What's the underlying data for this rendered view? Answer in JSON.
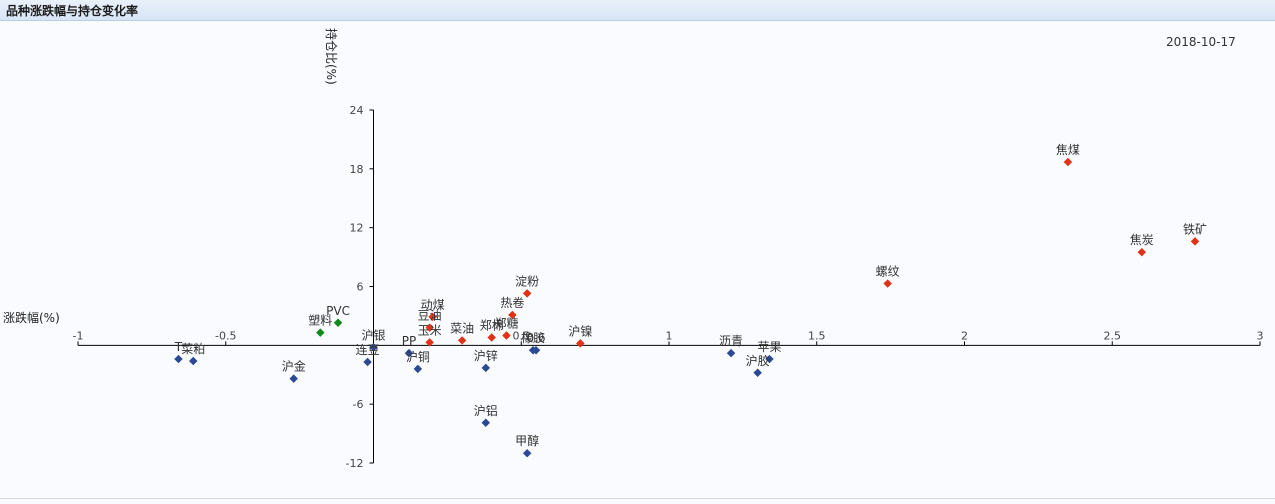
{
  "header": {
    "title": "品种涨跌幅与持仓变化率"
  },
  "date": "2018-10-17",
  "chart_data": {
    "type": "scatter",
    "title": "品种涨跌幅与持仓变化率",
    "xlabel": "涨跌幅(%)",
    "ylabel": "持仓比(%)",
    "xlim": [
      -1,
      3
    ],
    "ylim": [
      -12,
      24
    ],
    "x_ticks": [
      -1,
      -0.5,
      0,
      0.5,
      1,
      1.5,
      2,
      2.5,
      3
    ],
    "x_tick_labels": [
      "-1",
      "-0.5",
      "",
      "0.5",
      "1",
      "1.5",
      "2",
      "2.5",
      "3"
    ],
    "y_ticks": [
      -12,
      -6,
      0,
      6,
      12,
      18,
      24
    ],
    "y_tick_labels": [
      "-12",
      "-6",
      "",
      "6",
      "12",
      "18",
      "24"
    ],
    "grid": false,
    "colors": {
      "up": "#e03216",
      "down": "#2b4a94",
      "green": "#0f8a1c"
    },
    "points": [
      {
        "name": "焦煤",
        "x": 2.35,
        "y": 18.7,
        "color": "up"
      },
      {
        "name": "铁矿",
        "x": 2.78,
        "y": 10.6,
        "color": "up"
      },
      {
        "name": "焦炭",
        "x": 2.6,
        "y": 9.5,
        "color": "up"
      },
      {
        "name": "螺纹",
        "x": 1.74,
        "y": 6.3,
        "color": "up"
      },
      {
        "name": "淀粉",
        "x": 0.52,
        "y": 5.3,
        "color": "up"
      },
      {
        "name": "热卷",
        "x": 0.47,
        "y": 3.1,
        "color": "up"
      },
      {
        "name": "动煤",
        "x": 0.2,
        "y": 2.9,
        "color": "up"
      },
      {
        "name": "豆油",
        "x": 0.19,
        "y": 1.8,
        "color": "up"
      },
      {
        "name": "玉米",
        "x": 0.19,
        "y": 0.3,
        "color": "up"
      },
      {
        "name": "菜油",
        "x": 0.3,
        "y": 0.5,
        "color": "up"
      },
      {
        "name": "郑棉",
        "x": 0.4,
        "y": 0.8,
        "color": "up"
      },
      {
        "name": "郑糖",
        "x": 0.45,
        "y": 1.0,
        "color": "up"
      },
      {
        "name": "沪镍",
        "x": 0.7,
        "y": 0.2,
        "color": "up"
      },
      {
        "name": "PVC",
        "x": -0.12,
        "y": 2.3,
        "color": "green"
      },
      {
        "name": "塑料",
        "x": -0.18,
        "y": 1.3,
        "color": "green"
      },
      {
        "name": "沪银",
        "x": 0.0,
        "y": -0.2,
        "color": "down"
      },
      {
        "name": "PP",
        "x": 0.12,
        "y": -0.8,
        "color": "down"
      },
      {
        "name": "橡胶",
        "x": 0.54,
        "y": -0.5,
        "color": "down"
      },
      {
        "name": "0.6",
        "x": 0.55,
        "y": -0.5,
        "color": "down"
      },
      {
        "name": "沥青",
        "x": 1.21,
        "y": -0.8,
        "color": "down"
      },
      {
        "name": "苹果",
        "x": 1.34,
        "y": -1.4,
        "color": "down"
      },
      {
        "name": "T",
        "x": -0.66,
        "y": -1.4,
        "color": "down"
      },
      {
        "name": "菜粕",
        "x": -0.61,
        "y": -1.6,
        "color": "down"
      },
      {
        "name": "连豆",
        "x": -0.02,
        "y": -1.7,
        "color": "down"
      },
      {
        "name": "沪铜",
        "x": 0.15,
        "y": -2.4,
        "color": "down"
      },
      {
        "name": "沪锌",
        "x": 0.38,
        "y": -2.3,
        "color": "down"
      },
      {
        "name": "沪胶",
        "x": 1.3,
        "y": -2.8,
        "color": "down"
      },
      {
        "name": "沪金",
        "x": -0.27,
        "y": -3.4,
        "color": "down"
      },
      {
        "name": "沪铝",
        "x": 0.38,
        "y": -7.9,
        "color": "down"
      },
      {
        "name": "甲醇",
        "x": 0.52,
        "y": -11.0,
        "color": "down"
      }
    ]
  }
}
